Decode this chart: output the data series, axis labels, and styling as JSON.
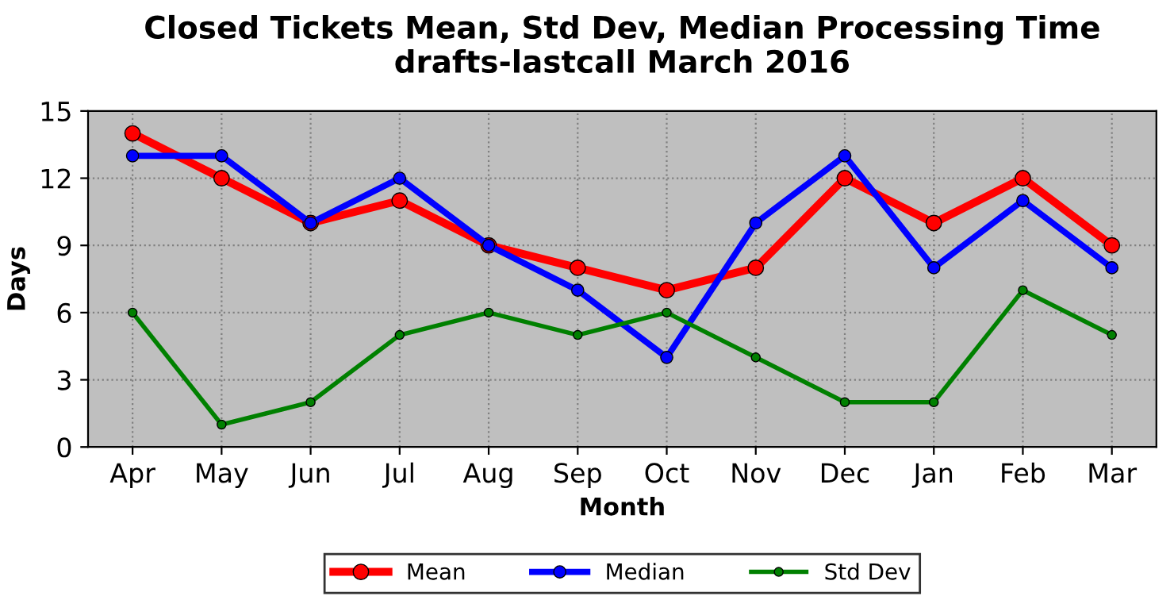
{
  "chart_data": {
    "type": "line",
    "title": "Closed Tickets Mean, Std Dev, Median Processing Time",
    "subtitle": "drafts-lastcall March 2016",
    "xlabel": "Month",
    "ylabel": "Days",
    "categories": [
      "Apr",
      "May",
      "Jun",
      "Jul",
      "Aug",
      "Sep",
      "Oct",
      "Nov",
      "Dec",
      "Jan",
      "Feb",
      "Mar"
    ],
    "series": [
      {
        "name": "Mean",
        "color": "#ff0000",
        "values": [
          14,
          12,
          10,
          11,
          9,
          8,
          7,
          8,
          12,
          10,
          12,
          9
        ]
      },
      {
        "name": "Median",
        "color": "#0000ff",
        "values": [
          13,
          13,
          10,
          12,
          9,
          7,
          4,
          10,
          13,
          8,
          11,
          8
        ]
      },
      {
        "name": "Std Dev",
        "color": "#008000",
        "values": [
          6,
          1,
          2,
          5,
          6,
          5,
          6,
          4,
          2,
          2,
          7,
          5
        ]
      }
    ],
    "ylim": [
      0,
      15
    ],
    "yticks": [
      0,
      3,
      6,
      9,
      12,
      15
    ],
    "grid": true,
    "legend": "bottom",
    "marker": "circle",
    "line_style": "solid"
  }
}
